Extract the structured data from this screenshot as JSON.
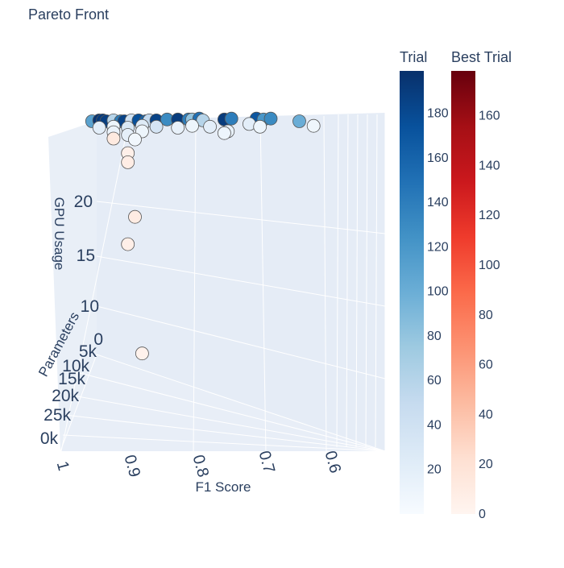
{
  "chart_data": {
    "type": "scatter",
    "title": "Pareto Front",
    "xlabel": "F1 Score",
    "ylabel": "GPU Usage",
    "zlabel": "Parameters",
    "x_ticks": [
      "1",
      "0.9",
      "0.8",
      "0.7",
      "0.6"
    ],
    "y_ticks": [
      "0",
      "10",
      "15",
      "20"
    ],
    "z_ticks": [
      "5k",
      "10k",
      "15k",
      "20k",
      "25k",
      "0k"
    ],
    "grid": true,
    "colorbars": [
      {
        "title": "Trial",
        "colorscale": "Blues",
        "range": [
          0,
          199
        ],
        "ticks": [
          "20",
          "40",
          "60",
          "80",
          "100",
          "120",
          "140",
          "160",
          "180"
        ]
      },
      {
        "title": "Best Trial",
        "colorscale": "Reds",
        "range": [
          0,
          178
        ],
        "ticks": [
          "0",
          "20",
          "40",
          "60",
          "80",
          "100",
          "120",
          "140",
          "160"
        ]
      }
    ],
    "series": [
      {
        "name": "Trial",
        "colorscale": "Blues",
        "points": [
          {
            "f1": 0.95,
            "gpu": 26.5,
            "trial": 110
          },
          {
            "f1": 0.94,
            "gpu": 26.6,
            "trial": 195
          },
          {
            "f1": 0.935,
            "gpu": 26.6,
            "trial": 190
          },
          {
            "f1": 0.93,
            "gpu": 26.5,
            "trial": 188
          },
          {
            "f1": 0.92,
            "gpu": 26.6,
            "trial": 60
          },
          {
            "f1": 0.91,
            "gpu": 26.5,
            "trial": 140
          },
          {
            "f1": 0.905,
            "gpu": 26.5,
            "trial": 185
          },
          {
            "f1": 0.895,
            "gpu": 26.6,
            "trial": 40
          },
          {
            "f1": 0.885,
            "gpu": 26.6,
            "trial": 175
          },
          {
            "f1": 0.875,
            "gpu": 26.5,
            "trial": 160
          },
          {
            "f1": 0.87,
            "gpu": 26.6,
            "trial": 50
          },
          {
            "f1": 0.86,
            "gpu": 26.6,
            "trial": 185
          },
          {
            "f1": 0.845,
            "gpu": 26.7,
            "trial": 130
          },
          {
            "f1": 0.83,
            "gpu": 26.7,
            "trial": 190
          },
          {
            "f1": 0.815,
            "gpu": 26.7,
            "trial": 140
          },
          {
            "f1": 0.81,
            "gpu": 26.7,
            "trial": 80
          },
          {
            "f1": 0.8,
            "gpu": 26.8,
            "trial": 150
          },
          {
            "f1": 0.795,
            "gpu": 26.6,
            "trial": 60
          },
          {
            "f1": 0.765,
            "gpu": 26.7,
            "trial": 190
          },
          {
            "f1": 0.755,
            "gpu": 26.8,
            "trial": 140
          },
          {
            "f1": 0.72,
            "gpu": 26.8,
            "trial": 170
          },
          {
            "f1": 0.71,
            "gpu": 26.7,
            "trial": 120
          },
          {
            "f1": 0.7,
            "gpu": 26.8,
            "trial": 130
          },
          {
            "f1": 0.66,
            "gpu": 26.5,
            "trial": 100
          },
          {
            "f1": 0.94,
            "gpu": 25.8,
            "trial": 20
          },
          {
            "f1": 0.92,
            "gpu": 25.9,
            "trial": 10
          },
          {
            "f1": 0.9,
            "gpu": 25.8,
            "trial": 30
          },
          {
            "f1": 0.88,
            "gpu": 26.0,
            "trial": 25
          },
          {
            "f1": 0.86,
            "gpu": 25.9,
            "trial": 35
          },
          {
            "f1": 0.83,
            "gpu": 25.8,
            "trial": 15
          },
          {
            "f1": 0.81,
            "gpu": 26.0,
            "trial": 10
          },
          {
            "f1": 0.785,
            "gpu": 25.9,
            "trial": 20
          },
          {
            "f1": 0.76,
            "gpu": 25.4,
            "trial": 15
          },
          {
            "f1": 0.73,
            "gpu": 26.2,
            "trial": 20
          },
          {
            "f1": 0.715,
            "gpu": 25.9,
            "trial": 10
          },
          {
            "f1": 0.64,
            "gpu": 26.0,
            "trial": 8
          },
          {
            "f1": 0.92,
            "gpu": 25.3,
            "trial": 12
          },
          {
            "f1": 0.9,
            "gpu": 25.0,
            "trial": 18
          },
          {
            "f1": 0.88,
            "gpu": 25.4,
            "trial": 10
          },
          {
            "f1": 0.765,
            "gpu": 25.2,
            "trial": 10
          },
          {
            "f1": 0.89,
            "gpu": 24.5,
            "trial": 6
          }
        ]
      },
      {
        "name": "Best Trial",
        "colorscale": "Reds",
        "points": [
          {
            "f1": 0.92,
            "gpu": 24.6,
            "trial": 12
          },
          {
            "f1": 0.9,
            "gpu": 23.0,
            "trial": 5
          },
          {
            "f1": 0.9,
            "gpu": 22.0,
            "trial": 8
          },
          {
            "f1": 0.89,
            "gpu": 16.0,
            "trial": 10
          },
          {
            "f1": 0.9,
            "gpu": 13.0,
            "trial": 6
          },
          {
            "f1": 0.88,
            "gpu": 1.0,
            "trial": 3
          }
        ]
      }
    ]
  }
}
